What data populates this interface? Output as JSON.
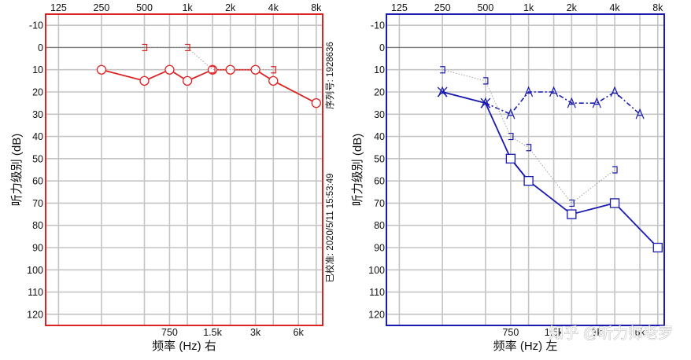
{
  "chart_data": [
    {
      "type": "line",
      "side_label": "右",
      "xlabel": "频率 (Hz)",
      "ylabel": "听力级别 (dB)",
      "x_ticks_top": [
        "125",
        "250",
        "500",
        "1k",
        "2k",
        "4k",
        "8k"
      ],
      "x_ticks_bottom": [
        "750",
        "1.5k",
        "3k",
        "6k"
      ],
      "y_ticks": [
        "-10",
        "0",
        "10",
        "20",
        "30",
        "40",
        "50",
        "60",
        "70",
        "80",
        "90",
        "100",
        "110",
        "120"
      ],
      "ylim": [
        -15,
        125
      ],
      "frame_color": "#dd2222",
      "serial_label": "序列号: 1928636",
      "calibration_label": "已校准: 2020/5/11 15:53:49",
      "series": [
        {
          "marker": "circle",
          "line": "solid",
          "color": "#dd2222",
          "x": [
            250,
            500,
            750,
            1000,
            1500,
            2000,
            3000,
            4000,
            8000
          ],
          "y": [
            10,
            15,
            10,
            15,
            10,
            10,
            10,
            15,
            25
          ]
        },
        {
          "marker": "bracket-right",
          "line": "dotted",
          "color": "#dd2222",
          "x": [
            500,
            1000,
            1500,
            4000
          ],
          "y": [
            0,
            0,
            10,
            10
          ]
        }
      ]
    },
    {
      "type": "line",
      "side_label": "左",
      "xlabel": "频率 (Hz)",
      "ylabel": "听力级别 (dB)",
      "x_ticks_top": [
        "125",
        "250",
        "500",
        "1k",
        "2k",
        "4k",
        "8k"
      ],
      "x_ticks_bottom": [
        "750",
        "1.5k",
        "3k",
        "6k"
      ],
      "y_ticks": [
        "-10",
        "0",
        "10",
        "20",
        "30",
        "40",
        "50",
        "60",
        "70",
        "80",
        "90",
        "100",
        "110",
        "120"
      ],
      "ylim": [
        -15,
        125
      ],
      "frame_color": "#1a1ab0",
      "series": [
        {
          "marker": "x",
          "line": "solid",
          "color": "#1a1ab0",
          "x": [
            250,
            500,
            750,
            1000
          ],
          "y": [
            20,
            25,
            50,
            60
          ]
        },
        {
          "marker": "square",
          "line": "solid",
          "color": "#1a1ab0",
          "x": [
            750,
            1000,
            2000,
            4000,
            8000
          ],
          "y": [
            50,
            60,
            75,
            70,
            90
          ]
        },
        {
          "marker": "A",
          "line": "dashdot",
          "color": "#1a1ab0",
          "x": [
            250,
            500,
            750,
            1000,
            1500,
            2000,
            3000,
            4000,
            6000
          ],
          "y": [
            20,
            25,
            30,
            20,
            20,
            25,
            25,
            20,
            30
          ]
        },
        {
          "marker": "bracket-left",
          "line": "dotted",
          "color": "#1a1ab0",
          "x": [
            250,
            500,
            750,
            1000,
            2000,
            4000
          ],
          "y": [
            10,
            15,
            40,
            45,
            70,
            55
          ]
        }
      ]
    }
  ],
  "watermark": "知乎 @听力师老罗"
}
